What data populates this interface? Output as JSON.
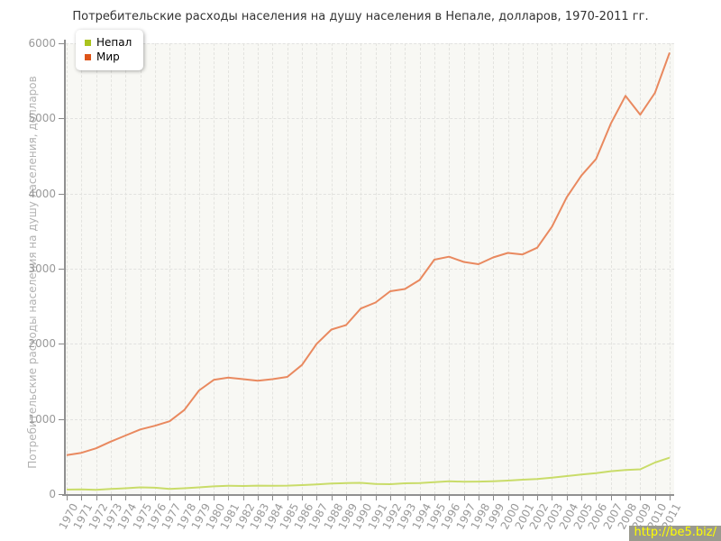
{
  "watermark": "http://be5.biz/",
  "chart_data": {
    "type": "line",
    "title": "Потребительские расходы населения на душу населения в Непале, долларов, 1970-2011 гг.",
    "ylabel": "Потребительские расходы населения на душу населения, долларов",
    "xlabel": "",
    "x": [
      1970,
      1971,
      1972,
      1973,
      1974,
      1975,
      1976,
      1977,
      1978,
      1979,
      1980,
      1981,
      1982,
      1983,
      1984,
      1985,
      1986,
      1987,
      1988,
      1989,
      1990,
      1991,
      1992,
      1993,
      1994,
      1995,
      1996,
      1997,
      1998,
      1999,
      2000,
      2001,
      2002,
      2003,
      2004,
      2005,
      2006,
      2007,
      2008,
      2009,
      2010,
      2011
    ],
    "series": [
      {
        "name": "Непал",
        "color": "#aac41e",
        "line_color": "#c9dc69",
        "values": [
          60,
          62,
          58,
          68,
          78,
          90,
          85,
          70,
          78,
          90,
          103,
          112,
          108,
          113,
          110,
          113,
          120,
          128,
          140,
          146,
          150,
          135,
          132,
          144,
          147,
          160,
          172,
          165,
          167,
          172,
          180,
          192,
          200,
          220,
          240,
          260,
          280,
          305,
          320,
          330,
          420,
          485
        ]
      },
      {
        "name": "Мир",
        "color": "#dd5418",
        "line_color": "#e9895f",
        "values": [
          520,
          550,
          610,
          700,
          780,
          860,
          910,
          970,
          1120,
          1380,
          1520,
          1550,
          1530,
          1510,
          1530,
          1560,
          1720,
          2000,
          2190,
          2250,
          2470,
          2550,
          2700,
          2730,
          2850,
          3120,
          3160,
          3090,
          3060,
          3150,
          3210,
          3190,
          3280,
          3560,
          3950,
          4240,
          4460,
          4930,
          5300,
          5050,
          5340,
          5875
        ]
      }
    ],
    "ylim": [
      0,
      6000
    ],
    "y_ticks": [
      0,
      1000,
      2000,
      3000,
      4000,
      5000,
      6000
    ],
    "grid": true,
    "legend_position": "top-left"
  }
}
